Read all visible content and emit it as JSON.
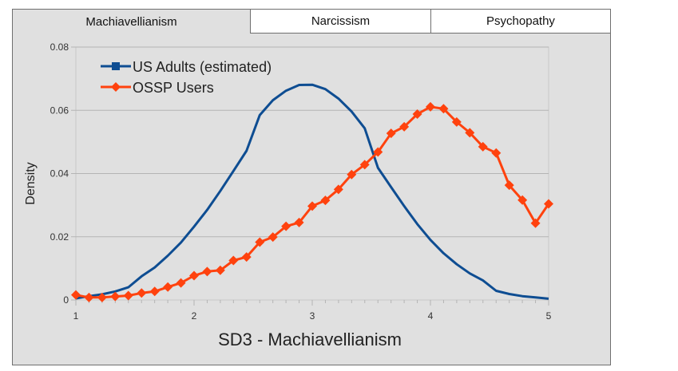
{
  "tabs": [
    {
      "label": "Machiavellianism",
      "active": true
    },
    {
      "label": "Narcissism",
      "active": false
    },
    {
      "label": "Psychopathy",
      "active": false
    }
  ],
  "chart_data": {
    "type": "line",
    "title": "",
    "xlabel": "SD3 - Machiavellianism",
    "ylabel": "Density",
    "xlim": [
      1,
      5
    ],
    "ylim": [
      0,
      0.08
    ],
    "xticks": [
      "1",
      "2",
      "3",
      "4",
      "5"
    ],
    "yticks": [
      "0",
      "0.02",
      "0.04",
      "0.06",
      "0.08"
    ],
    "grid": true,
    "legend_position": "top-left",
    "series": [
      {
        "name": "US Adults (estimated)",
        "color": "#0e4d92",
        "marker": "square",
        "markers_shown": false,
        "points": [
          [
            1.0,
            0.0005
          ],
          [
            1.111,
            0.0012
          ],
          [
            1.222,
            0.0018
          ],
          [
            1.333,
            0.0027
          ],
          [
            1.444,
            0.004
          ],
          [
            1.556,
            0.0075
          ],
          [
            1.667,
            0.0103
          ],
          [
            1.778,
            0.014
          ],
          [
            1.889,
            0.0182
          ],
          [
            2.0,
            0.0232
          ],
          [
            2.111,
            0.0285
          ],
          [
            2.222,
            0.0345
          ],
          [
            2.333,
            0.0408
          ],
          [
            2.444,
            0.0472
          ],
          [
            2.556,
            0.0585
          ],
          [
            2.667,
            0.0632
          ],
          [
            2.778,
            0.0662
          ],
          [
            2.889,
            0.068
          ],
          [
            3.0,
            0.0681
          ],
          [
            3.111,
            0.0667
          ],
          [
            3.222,
            0.0637
          ],
          [
            3.333,
            0.0596
          ],
          [
            3.444,
            0.0543
          ],
          [
            3.556,
            0.0418
          ],
          [
            3.667,
            0.0357
          ],
          [
            3.778,
            0.0297
          ],
          [
            3.889,
            0.024
          ],
          [
            4.0,
            0.019
          ],
          [
            4.111,
            0.0148
          ],
          [
            4.222,
            0.0113
          ],
          [
            4.333,
            0.0084
          ],
          [
            4.444,
            0.0062
          ],
          [
            4.556,
            0.0029
          ],
          [
            4.667,
            0.0019
          ],
          [
            4.778,
            0.0012
          ],
          [
            4.889,
            0.0008
          ],
          [
            5.0,
            0.0004
          ]
        ]
      },
      {
        "name": "OSSP Users",
        "color": "#ff420e",
        "marker": "diamond",
        "markers_shown": true,
        "points": [
          [
            1.0,
            0.0016
          ],
          [
            1.111,
            0.0008
          ],
          [
            1.222,
            0.0008
          ],
          [
            1.333,
            0.0011
          ],
          [
            1.444,
            0.0014
          ],
          [
            1.556,
            0.0022
          ],
          [
            1.667,
            0.0027
          ],
          [
            1.778,
            0.0041
          ],
          [
            1.889,
            0.0054
          ],
          [
            2.0,
            0.0077
          ],
          [
            2.111,
            0.009
          ],
          [
            2.222,
            0.0094
          ],
          [
            2.333,
            0.0125
          ],
          [
            2.444,
            0.0136
          ],
          [
            2.556,
            0.0183
          ],
          [
            2.667,
            0.0199
          ],
          [
            2.778,
            0.0233
          ],
          [
            2.889,
            0.0245
          ],
          [
            3.0,
            0.0297
          ],
          [
            3.111,
            0.0315
          ],
          [
            3.222,
            0.035
          ],
          [
            3.333,
            0.0397
          ],
          [
            3.444,
            0.0428
          ],
          [
            3.556,
            0.0468
          ],
          [
            3.667,
            0.0527
          ],
          [
            3.778,
            0.0548
          ],
          [
            3.889,
            0.0588
          ],
          [
            4.0,
            0.0611
          ],
          [
            4.111,
            0.0605
          ],
          [
            4.222,
            0.0563
          ],
          [
            4.333,
            0.0529
          ],
          [
            4.444,
            0.0485
          ],
          [
            4.556,
            0.0465
          ],
          [
            4.667,
            0.0363
          ],
          [
            4.778,
            0.0316
          ],
          [
            4.889,
            0.0243
          ],
          [
            5.0,
            0.0304
          ]
        ]
      }
    ]
  }
}
